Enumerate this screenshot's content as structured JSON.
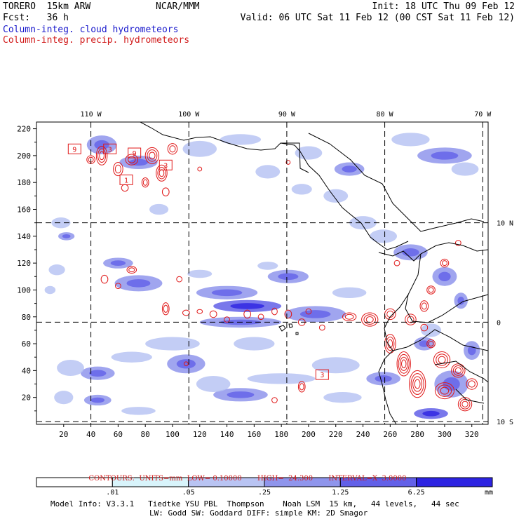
{
  "header": {
    "model": "TORERO  15km ARW",
    "center": "NCAR/MMM",
    "init": "Init: 18 UTC Thu 09 Feb 12",
    "fcst": "Fcst:   36 h",
    "valid": "Valid: 06 UTC Sat 11 Feb 12 (00 CST Sat 11 Feb 12)",
    "field_shaded": "Column-integ. cloud hydrometeors",
    "field_contour": "Column-integ. precip. hydrometeors"
  },
  "chart_data": {
    "type": "heatmap",
    "title": "Column-integrated cloud (shaded) and precipitation (contours) hydrometeors",
    "x_ticks": [
      "20",
      "40",
      "60",
      "80",
      "100",
      "120",
      "140",
      "160",
      "180",
      "200",
      "220",
      "240",
      "260",
      "280",
      "300",
      "320"
    ],
    "y_ticks": [
      "20",
      "40",
      "60",
      "80",
      "100",
      "120",
      "140",
      "160",
      "180",
      "200",
      "220"
    ],
    "xlim": [
      0,
      332
    ],
    "ylim": [
      0,
      225
    ],
    "lon_labels": [
      "110 W",
      "100 W",
      "90 W",
      "80 W",
      "70 W"
    ],
    "lon_grid_x": [
      40,
      112,
      184,
      256,
      328
    ],
    "lat_labels": [
      "10 N",
      "0",
      "10 S"
    ],
    "lat_grid_y": [
      150,
      76,
      2
    ],
    "box_labels": [
      "9",
      "3",
      "9",
      "1",
      "3",
      "3"
    ],
    "contour_note": {
      "label": "CONTOURS:  UNITS=mm",
      "low": "LOW= 0.10000",
      "high": "HIGH=  24.300",
      "interval": "INTERVAL=X  3.0000"
    },
    "colorbar": {
      "levels": [
        ".01",
        ".05",
        ".25",
        "1.25",
        "6.25"
      ],
      "units": "mm",
      "colors": [
        "#ffffff",
        "#d8f4fb",
        "#b9c4f3",
        "#8f95ec",
        "#6260e8",
        "#2d23e2"
      ]
    },
    "cloud_cells": [
      [
        48,
        208,
        22,
        14,
        2
      ],
      [
        75,
        195,
        28,
        10,
        2
      ],
      [
        120,
        205,
        25,
        12,
        1
      ],
      [
        150,
        212,
        30,
        8,
        1
      ],
      [
        200,
        202,
        20,
        10,
        1
      ],
      [
        230,
        190,
        22,
        10,
        2
      ],
      [
        275,
        212,
        28,
        10,
        1
      ],
      [
        300,
        200,
        40,
        12,
        2
      ],
      [
        315,
        190,
        20,
        10,
        1
      ],
      [
        18,
        150,
        14,
        8,
        1
      ],
      [
        22,
        140,
        12,
        6,
        2
      ],
      [
        60,
        120,
        22,
        8,
        2
      ],
      [
        75,
        105,
        35,
        12,
        2
      ],
      [
        15,
        115,
        12,
        8,
        1
      ],
      [
        10,
        100,
        8,
        6,
        1
      ],
      [
        120,
        112,
        18,
        6,
        1
      ],
      [
        140,
        98,
        45,
        10,
        2
      ],
      [
        155,
        88,
        50,
        9,
        3
      ],
      [
        150,
        76,
        60,
        8,
        2
      ],
      [
        205,
        82,
        45,
        12,
        2
      ],
      [
        185,
        110,
        30,
        10,
        2
      ],
      [
        170,
        118,
        15,
        6,
        1
      ],
      [
        230,
        98,
        25,
        8,
        1
      ],
      [
        255,
        140,
        20,
        10,
        1
      ],
      [
        275,
        128,
        25,
        12,
        2
      ],
      [
        300,
        110,
        18,
        14,
        2
      ],
      [
        312,
        92,
        10,
        12,
        2
      ],
      [
        290,
        70,
        15,
        10,
        1
      ],
      [
        110,
        45,
        28,
        14,
        2
      ],
      [
        100,
        60,
        40,
        10,
        1
      ],
      [
        70,
        50,
        30,
        8,
        1
      ],
      [
        45,
        38,
        25,
        10,
        2
      ],
      [
        25,
        42,
        20,
        12,
        1
      ],
      [
        20,
        20,
        14,
        10,
        1
      ],
      [
        45,
        18,
        20,
        8,
        2
      ],
      [
        75,
        10,
        25,
        6,
        1
      ],
      [
        150,
        22,
        40,
        10,
        2
      ],
      [
        180,
        34,
        50,
        8,
        1
      ],
      [
        220,
        44,
        35,
        12,
        1
      ],
      [
        255,
        34,
        25,
        10,
        2
      ],
      [
        225,
        20,
        28,
        8,
        1
      ],
      [
        285,
        60,
        15,
        10,
        2
      ],
      [
        305,
        30,
        25,
        20,
        2
      ],
      [
        290,
        8,
        25,
        8,
        3
      ],
      [
        320,
        55,
        12,
        14,
        2
      ],
      [
        240,
        150,
        20,
        10,
        1
      ],
      [
        220,
        170,
        18,
        10,
        1
      ],
      [
        195,
        175,
        15,
        8,
        1
      ],
      [
        170,
        188,
        18,
        10,
        1
      ],
      [
        160,
        60,
        30,
        10,
        1
      ],
      [
        130,
        30,
        25,
        12,
        1
      ],
      [
        90,
        160,
        14,
        8,
        1
      ]
    ],
    "precip_cells": [
      [
        48,
        200,
        8,
        14
      ],
      [
        60,
        190,
        7,
        10
      ],
      [
        70,
        197,
        9,
        8
      ],
      [
        85,
        200,
        10,
        12
      ],
      [
        92,
        187,
        8,
        12
      ],
      [
        100,
        205,
        7,
        8
      ],
      [
        40,
        197,
        6,
        6
      ],
      [
        80,
        180,
        5,
        7
      ],
      [
        95,
        173,
        5,
        6
      ],
      [
        65,
        176,
        5,
        5
      ],
      [
        70,
        115,
        7,
        5
      ],
      [
        50,
        108,
        5,
        6
      ],
      [
        60,
        103,
        4,
        4
      ],
      [
        105,
        108,
        4,
        4
      ],
      [
        95,
        86,
        5,
        9
      ],
      [
        110,
        83,
        5,
        4
      ],
      [
        120,
        84,
        4,
        3
      ],
      [
        130,
        82,
        5,
        5
      ],
      [
        140,
        78,
        4,
        4
      ],
      [
        155,
        82,
        5,
        6
      ],
      [
        165,
        80,
        4,
        4
      ],
      [
        175,
        84,
        4,
        5
      ],
      [
        185,
        82,
        5,
        6
      ],
      [
        195,
        76,
        5,
        5
      ],
      [
        200,
        84,
        4,
        4
      ],
      [
        210,
        72,
        4,
        4
      ],
      [
        230,
        80,
        10,
        6
      ],
      [
        245,
        78,
        12,
        10
      ],
      [
        260,
        82,
        8,
        8
      ],
      [
        275,
        78,
        8,
        8
      ],
      [
        285,
        88,
        6,
        8
      ],
      [
        290,
        100,
        6,
        6
      ],
      [
        300,
        120,
        6,
        6
      ],
      [
        310,
        135,
        4,
        4
      ],
      [
        265,
        120,
        4,
        4
      ],
      [
        260,
        60,
        8,
        14
      ],
      [
        270,
        45,
        10,
        18
      ],
      [
        280,
        30,
        12,
        20
      ],
      [
        300,
        25,
        14,
        12
      ],
      [
        315,
        15,
        10,
        10
      ],
      [
        298,
        48,
        12,
        12
      ],
      [
        310,
        40,
        10,
        10
      ],
      [
        320,
        30,
        8,
        8
      ],
      [
        195,
        28,
        5,
        8
      ],
      [
        175,
        18,
        4,
        4
      ],
      [
        110,
        45,
        3,
        3
      ],
      [
        120,
        190,
        3,
        3
      ],
      [
        185,
        195,
        3,
        3
      ],
      [
        285,
        72,
        5,
        5
      ],
      [
        290,
        60,
        6,
        6
      ]
    ]
  },
  "footer": {
    "line1": "Model Info: V3.3.1   Tiedtke YSU PBL  Thompson    Noah LSM  15 km,   44 levels,   44 sec",
    "line2": "LW: Godd SW: Goddard DIFF: simple KM: 2D Smagor"
  }
}
